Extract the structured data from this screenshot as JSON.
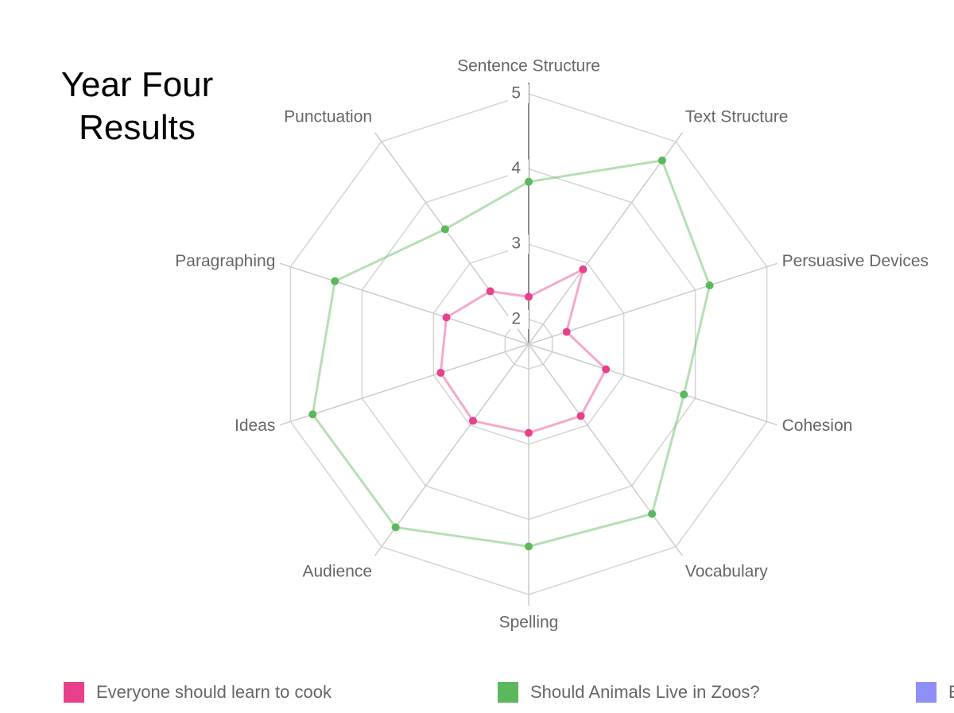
{
  "chart_data": {
    "type": "radar",
    "title": "Year Four Results",
    "categories": [
      "Sentence Structure",
      "Text Structure",
      "Persuasive Devices",
      "Cohesion",
      "Vocabulary",
      "Spelling",
      "Audience",
      "Ideas",
      "Paragraphing",
      "Punctuation"
    ],
    "rlim": [
      1.67,
      5
    ],
    "rticks": [
      2,
      3,
      4,
      5
    ],
    "grid": true,
    "legend": "bottom",
    "series": [
      {
        "name": "Everyone should learn to cook",
        "color": "#e8408a",
        "values": [
          2.3,
          2.9,
          2.2,
          2.75,
          2.85,
          2.85,
          2.93,
          2.9,
          2.82,
          2.54
        ]
      },
      {
        "name": "Should Animals Live in Zoos?",
        "color": "#5cb85c",
        "values": [
          3.83,
          4.69,
          4.2,
          3.84,
          4.46,
          4.36,
          4.68,
          4.69,
          4.38,
          3.56
        ]
      },
      {
        "name": "E",
        "color": "#8f8ff8"
      }
    ]
  }
}
